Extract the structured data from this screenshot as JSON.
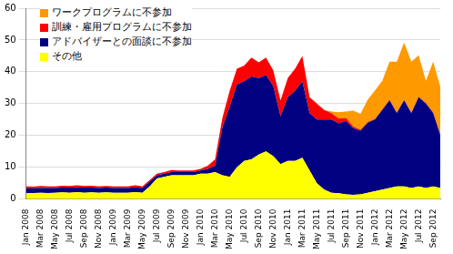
{
  "chart_data": {
    "type": "area",
    "stacked": true,
    "grid": true,
    "legend": "top-left",
    "categories": [
      "Jan 2008",
      null,
      "Mar 2008",
      null,
      "May 2008",
      null,
      "Jul 2008",
      null,
      "Sep 2008",
      null,
      "Nov 2008",
      null,
      "Jan 2009",
      null,
      "Mar 2009",
      null,
      "May 2009",
      null,
      "Jul 2009",
      null,
      "Sep 2009",
      null,
      "Nov 2009",
      null,
      "Jan 2010",
      null,
      "Mar 2010",
      null,
      "May 2010",
      null,
      "Jul 2010",
      null,
      "Sep 2010",
      null,
      "Nov 2010",
      null,
      "Jan 2011",
      null,
      "Mar 2011",
      null,
      "May 2011",
      null,
      "Jul 2011",
      null,
      "Sep 2011",
      null,
      "Nov 2011",
      null,
      "Jan 2012",
      null,
      "Mar 2012",
      null,
      "May 2012",
      null,
      "Jul 2012",
      null,
      "Sep 2012",
      null
    ],
    "ylim": [
      0,
      60
    ],
    "yticks": [
      0,
      10,
      20,
      30,
      40,
      50,
      60
    ],
    "series": [
      {
        "name": "その他",
        "color": "#ffff00",
        "values": [
          1.8,
          1.9,
          2,
          1.9,
          2,
          2.1,
          2,
          2.2,
          2,
          2.1,
          2,
          2.1,
          2,
          2,
          2,
          2.2,
          2,
          4,
          6.5,
          7,
          7.5,
          7.5,
          7.5,
          7.5,
          8,
          8,
          8.5,
          7.5,
          7,
          10,
          12,
          12.5,
          14,
          15,
          13.5,
          11,
          12,
          12,
          13,
          9,
          5,
          3,
          2,
          1.8,
          1.5,
          1.3,
          1.5,
          2,
          2.5,
          3,
          3.5,
          4,
          4,
          3.5,
          4,
          3.5,
          4,
          3.5
        ]
      },
      {
        "name": "アドバイザーとの面談に不参加",
        "color": "#000080",
        "values": [
          1.6,
          1.5,
          1.5,
          1.6,
          1.5,
          1.5,
          1.6,
          1.5,
          1.6,
          1.5,
          1.5,
          1.5,
          1.5,
          1.5,
          1.5,
          1.5,
          1.5,
          1.5,
          1,
          1,
          1,
          1,
          1,
          1,
          1,
          1.5,
          2,
          15,
          22,
          26,
          25,
          26,
          24,
          24,
          22,
          15,
          20,
          22,
          24,
          18,
          20,
          22,
          23,
          22,
          23,
          21,
          20,
          22,
          22.5,
          25,
          27.5,
          23,
          27,
          23.5,
          28,
          26.5,
          23,
          16.5
        ]
      },
      {
        "name": "訓練・雇用プログラムに不参加",
        "color": "#ff0000",
        "values": [
          0.6,
          0.5,
          0.6,
          0.5,
          0.5,
          0.6,
          0.5,
          0.6,
          0.5,
          0.6,
          0.5,
          0.5,
          0.5,
          0.5,
          0.5,
          0.6,
          0.5,
          0.5,
          0.5,
          0.5,
          0.6,
          0.5,
          0.5,
          0.5,
          0.5,
          1,
          2,
          3,
          5,
          5,
          5,
          6,
          5,
          5.5,
          5,
          5,
          6,
          7,
          8,
          5,
          5,
          3,
          2,
          1.5,
          1,
          0.5,
          0.3,
          0.2,
          0.2,
          0.2,
          0.2,
          0.2,
          0.2,
          0.2,
          0.2,
          0.2,
          0.2,
          0.2
        ]
      },
      {
        "name": "ワークプログラムに不参加",
        "color": "#ff9900",
        "values": [
          0,
          0,
          0,
          0,
          0,
          0,
          0,
          0,
          0,
          0,
          0,
          0,
          0,
          0,
          0,
          0,
          0,
          0,
          0,
          0,
          0,
          0,
          0,
          0,
          0,
          0,
          0,
          0,
          0,
          0,
          0,
          0,
          0,
          0,
          0,
          0,
          0,
          0,
          0,
          0,
          0,
          0,
          0.5,
          2,
          2,
          5,
          5,
          7,
          9,
          9,
          12,
          16,
          18,
          16,
          13,
          7,
          16,
          15
        ]
      }
    ]
  }
}
